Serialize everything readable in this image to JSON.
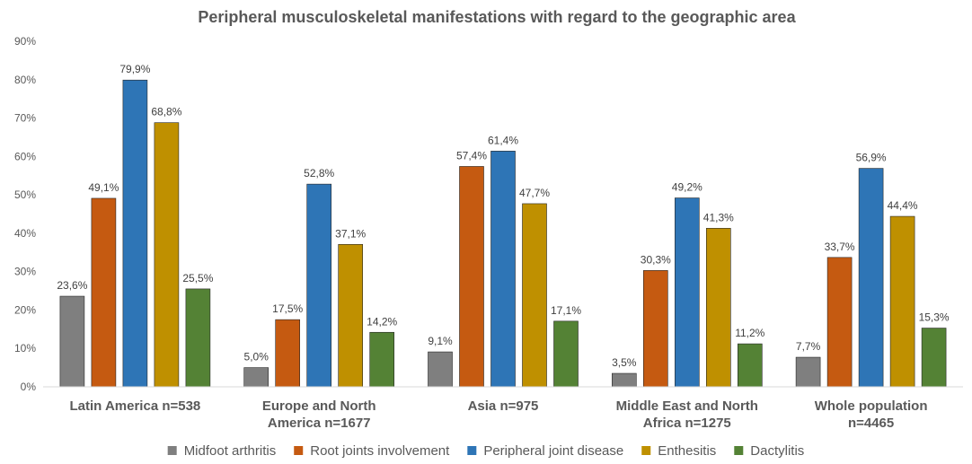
{
  "chart_data": {
    "type": "bar",
    "title": "Peripheral musculoskeletal manifestations with regard to the geographic area",
    "xlabel": "",
    "ylabel": "",
    "ylim": [
      0,
      90
    ],
    "yticks": [
      "0%",
      "10%",
      "20%",
      "30%",
      "40%",
      "50%",
      "60%",
      "70%",
      "80%",
      "90%"
    ],
    "grid": false,
    "legend_position": "bottom",
    "categories": [
      [
        "Latin America n=538"
      ],
      [
        "Europe and North",
        "America n=1677"
      ],
      [
        "Asia n=975"
      ],
      [
        "Middle East and North",
        "Africa n=1275"
      ],
      [
        "Whole population",
        "n=4465"
      ]
    ],
    "series": [
      {
        "name": "Midfoot arthritis",
        "color": "#7f7f7f",
        "values": [
          23.6,
          5.0,
          9.1,
          3.5,
          7.7
        ],
        "labels": [
          "23,6%",
          "5,0%",
          "9,1%",
          "3,5%",
          "7,7%"
        ]
      },
      {
        "name": "Root joints involvement",
        "color": "#c55a11",
        "values": [
          49.1,
          17.5,
          57.4,
          30.3,
          33.7
        ],
        "labels": [
          "49,1%",
          "17,5%",
          "57,4%",
          "30,3%",
          "33,7%"
        ]
      },
      {
        "name": "Peripheral joint disease",
        "color": "#2e75b6",
        "values": [
          79.9,
          52.8,
          61.4,
          49.2,
          56.9
        ],
        "labels": [
          "79,9%",
          "52,8%",
          "61,4%",
          "49,2%",
          "56,9%"
        ]
      },
      {
        "name": "Enthesitis",
        "color": "#bf9000",
        "values": [
          68.8,
          37.1,
          47.7,
          41.3,
          44.4
        ],
        "labels": [
          "68,8%",
          "37,1%",
          "47,7%",
          "41,3%",
          "44,4%"
        ]
      },
      {
        "name": "Dactylitis",
        "color": "#548235",
        "values": [
          25.5,
          14.2,
          17.1,
          11.2,
          15.3
        ],
        "labels": [
          "25,5%",
          "14,2%",
          "17,1%",
          "11,2%",
          "15,3%"
        ]
      }
    ]
  }
}
